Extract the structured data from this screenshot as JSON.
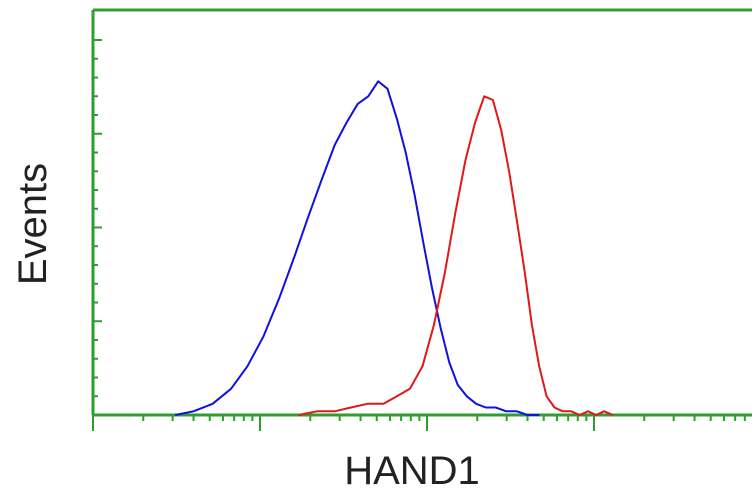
{
  "chart_data": {
    "type": "line",
    "title": "",
    "xlabel": "HAND1",
    "ylabel": "Events",
    "xscale": "log",
    "xlim": [
      1,
      10000
    ],
    "ylim": [
      0,
      100
    ],
    "grid": false,
    "legend": "none",
    "colors": {
      "axis": "#2e9e2e",
      "series_blue": "#1010e0",
      "series_red": "#e01818"
    },
    "series": [
      {
        "color": "#1010e0",
        "x": [
          3.1,
          4.0,
          5.2,
          6.7,
          8.4,
          10.5,
          13.0,
          16.0,
          19.5,
          23.5,
          28.0,
          33.0,
          38.5,
          44.5,
          51.0,
          58.0,
          66.0,
          74.5,
          84.0,
          95.0,
          107,
          121,
          136,
          153,
          173,
          197,
          225,
          258,
          298,
          345,
          400,
          470
        ],
        "y": [
          0,
          1,
          3,
          7,
          13,
          21,
          31,
          42,
          53,
          63,
          72,
          78,
          83,
          85,
          89,
          87,
          79,
          70,
          59,
          46,
          34,
          23,
          14,
          8,
          5,
          3,
          2,
          2,
          1,
          1,
          0,
          0
        ]
      },
      {
        "color": "#e01818",
        "x": [
          17,
          22,
          28,
          35,
          44,
          55,
          66,
          79,
          94,
          110,
          128,
          148,
          170,
          194,
          220,
          248,
          278,
          310,
          345,
          385,
          425,
          470,
          520,
          580,
          650,
          730,
          820,
          920,
          1030,
          1150,
          1300
        ],
        "y": [
          0,
          1,
          1,
          2,
          3,
          3,
          5,
          7,
          13,
          24,
          38,
          54,
          68,
          78,
          85,
          84,
          76,
          65,
          52,
          38,
          24,
          13,
          5,
          2,
          1,
          1,
          0,
          1,
          0,
          1,
          0
        ]
      }
    ]
  }
}
